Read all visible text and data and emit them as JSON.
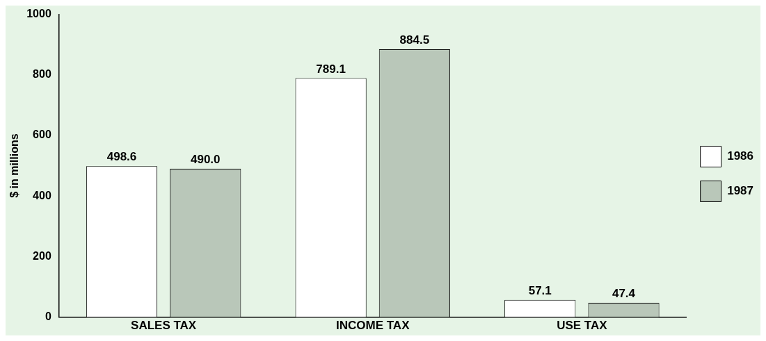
{
  "chart_data": {
    "type": "bar",
    "ylabel": "$ in millions",
    "categories": [
      "SALES TAX",
      "INCOME TAX",
      "USE TAX"
    ],
    "series": [
      {
        "name": "1986",
        "color": "#ffffff",
        "values": [
          498.6,
          789.1,
          57.1
        ],
        "value_labels": [
          "498.6",
          "789.1",
          "57.1"
        ]
      },
      {
        "name": "1987",
        "color": "#b9c7b9",
        "values": [
          490.0,
          884.5,
          47.4
        ],
        "value_labels": [
          "490.0",
          "884.5",
          "47.4"
        ]
      }
    ],
    "ylim": [
      0,
      1000
    ],
    "yticks": [
      0,
      200,
      400,
      600,
      800,
      1000
    ],
    "grid": false,
    "legend": "right"
  }
}
